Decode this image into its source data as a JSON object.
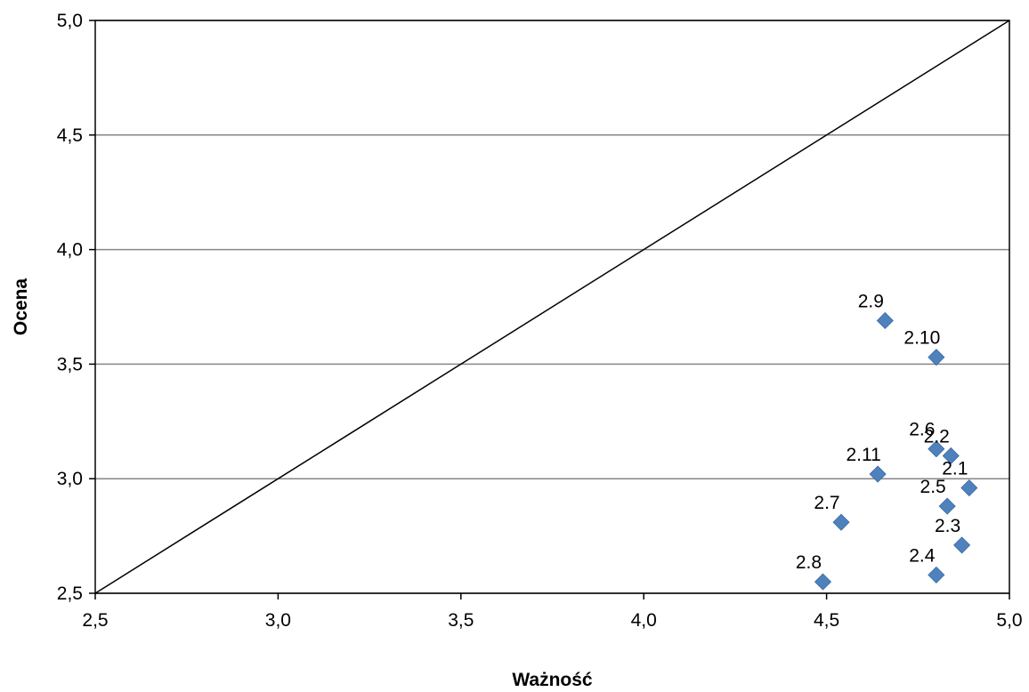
{
  "chart_data": {
    "type": "scatter",
    "title": "",
    "xlabel": "Ważność",
    "ylabel": "Ocena",
    "xlim": [
      2.5,
      5.0
    ],
    "ylim": [
      2.5,
      5.0
    ],
    "x_ticks": [
      "2,5",
      "3,0",
      "3,5",
      "4,0",
      "4,5",
      "5,0"
    ],
    "y_ticks": [
      "2,5",
      "3,0",
      "3,5",
      "4,0",
      "4,5",
      "5,0"
    ],
    "grid": "horizontal",
    "legend": "none",
    "reference_line": {
      "from": [
        2.5,
        2.5
      ],
      "to": [
        5.0,
        5.0
      ]
    },
    "marker_color": "#4f81bd",
    "points": [
      {
        "label": "2.1",
        "x": 4.89,
        "y": 2.96
      },
      {
        "label": "2.2",
        "x": 4.84,
        "y": 3.1
      },
      {
        "label": "2.3",
        "x": 4.87,
        "y": 2.71
      },
      {
        "label": "2.4",
        "x": 4.8,
        "y": 2.58
      },
      {
        "label": "2.5",
        "x": 4.83,
        "y": 2.88
      },
      {
        "label": "2.6",
        "x": 4.8,
        "y": 3.13
      },
      {
        "label": "2.7",
        "x": 4.54,
        "y": 2.81
      },
      {
        "label": "2.8",
        "x": 4.49,
        "y": 2.55
      },
      {
        "label": "2.9",
        "x": 4.66,
        "y": 3.69
      },
      {
        "label": "2.10",
        "x": 4.8,
        "y": 3.53
      },
      {
        "label": "2.11",
        "x": 4.64,
        "y": 3.02
      }
    ]
  }
}
